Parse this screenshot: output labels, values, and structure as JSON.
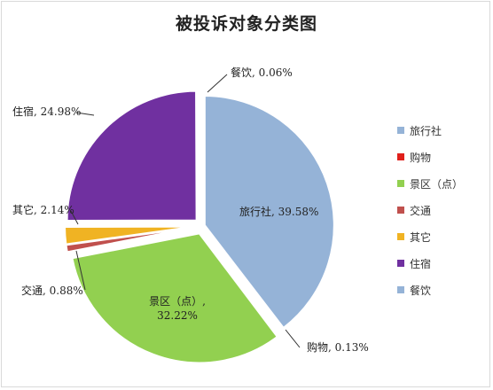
{
  "chart_data": {
    "type": "pie",
    "title": "被投诉对象分类图",
    "slices": [
      {
        "name": "旅行社",
        "value": 39.58,
        "label": "旅行社, 39.58%",
        "color": "#95B3D7",
        "exploded": false
      },
      {
        "name": "购物",
        "value": 0.13,
        "label": "购物, 0.13%",
        "color": "#E0201B",
        "exploded": false
      },
      {
        "name": "景区（点）",
        "value": 32.22,
        "label": "景区（点）,",
        "label2": "32.22%",
        "color": "#92D050",
        "exploded": true
      },
      {
        "name": "交通",
        "value": 0.88,
        "label": "交通, 0.88%",
        "color": "#C0504D",
        "exploded": true
      },
      {
        "name": "其它",
        "value": 2.14,
        "label": "其它, 2.14%",
        "color": "#F0B323",
        "exploded": true
      },
      {
        "name": "住宿",
        "value": 24.98,
        "label": "住宿, 24.98%",
        "color": "#7030A0",
        "exploded": true
      },
      {
        "name": "餐饮",
        "value": 0.06,
        "label": "餐饮, 0.06%",
        "color": "#95B3D7",
        "exploded": false
      }
    ],
    "legend": {
      "position": "right",
      "items": [
        {
          "name": "旅行社",
          "color": "#95B3D7"
        },
        {
          "name": "购物",
          "color": "#E0201B"
        },
        {
          "name": "景区（点）",
          "color": "#92D050"
        },
        {
          "name": "交通",
          "color": "#C0504D"
        },
        {
          "name": "其它",
          "color": "#F0B323"
        },
        {
          "name": "住宿",
          "color": "#7030A0"
        },
        {
          "name": "餐饮",
          "color": "#95B3D7"
        }
      ]
    }
  }
}
